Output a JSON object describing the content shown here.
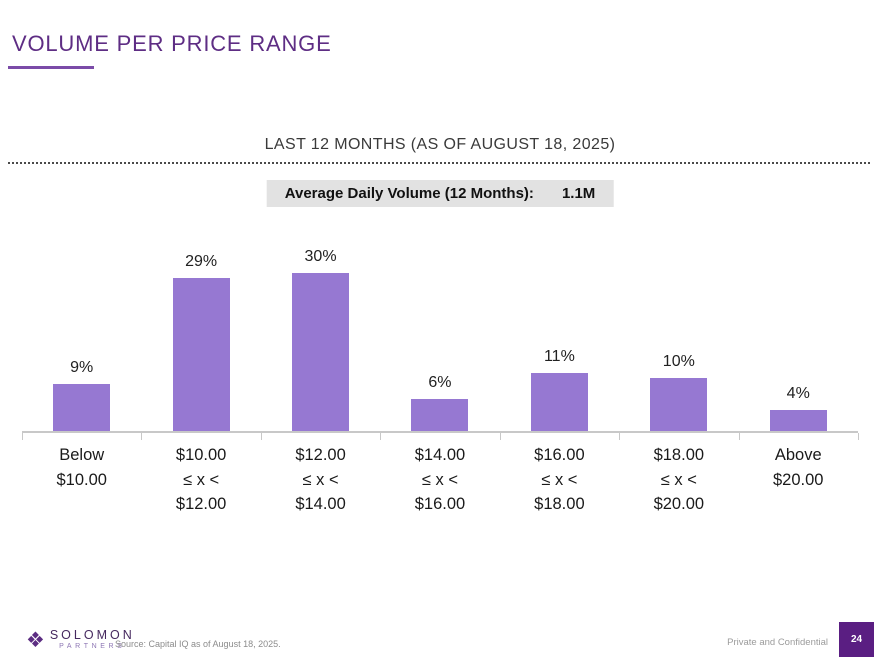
{
  "slide": {
    "title": "VOLUME PER PRICE RANGE",
    "page_number": "24",
    "confidentiality": "Private and Confidential",
    "source_note": "Source: Capital IQ as of August 18, 2025.",
    "logo": {
      "mark_icon": "woven-diamond-icon",
      "line1": "SOLOMON",
      "line2": "PARTNERS"
    },
    "accent_color": "#5e2d84"
  },
  "chart_data": {
    "type": "bar",
    "title": "LAST 12 MONTHS (AS OF AUGUST 18, 2025)",
    "annotation_label": "Average Daily Volume (12 Months):",
    "annotation_value": "1.1M",
    "categories": [
      [
        "Below",
        "$10.00"
      ],
      [
        "$10.00",
        "≤ x <",
        "$12.00"
      ],
      [
        "$12.00",
        "≤ x <",
        "$14.00"
      ],
      [
        "$14.00",
        "≤ x <",
        "$16.00"
      ],
      [
        "$16.00",
        "≤ x <",
        "$18.00"
      ],
      [
        "$18.00",
        "≤ x <",
        "$20.00"
      ],
      [
        "Above",
        "$20.00"
      ]
    ],
    "values": [
      9,
      29,
      30,
      6,
      11,
      10,
      4
    ],
    "value_labels": [
      "9%",
      "29%",
      "30%",
      "6%",
      "11%",
      "10%",
      "4%"
    ],
    "unit": "percent",
    "ylim": [
      0,
      30
    ],
    "grid": false,
    "y_axis_visible": false,
    "data_labels_position": "above-bar",
    "bar_color": "#9678d2",
    "axis_color": "#c8c8c8"
  }
}
